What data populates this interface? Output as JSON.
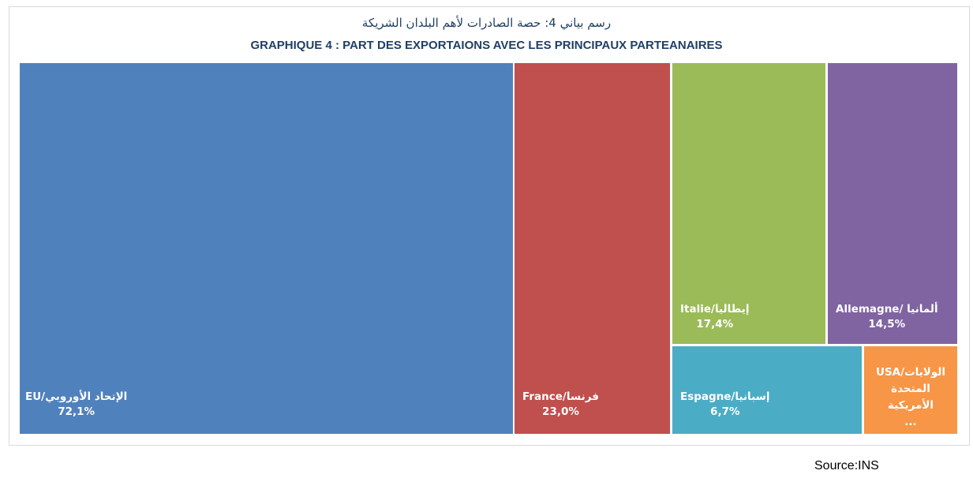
{
  "chart_data": {
    "type": "treemap",
    "title_ar": "رسم بياني 4: حصة الصادرات لأهم البلدان  الشريكة",
    "title_fr": "GRAPHIQUE 4 : PART DES EXPORTAIONS AVEC LES PRINCIPAUX PARTEANAIRES",
    "items": [
      {
        "label": "EU/الإتحاد الأوروبي",
        "value": 72.1,
        "value_label": "72,1%",
        "color": "#4f81bd"
      },
      {
        "label": "France/فرنسا",
        "value": 23.0,
        "value_label": "23,0%",
        "color": "#c0504d"
      },
      {
        "label": "Italie/إيطاليا",
        "value": 17.4,
        "value_label": "17,4%",
        "color": "#9bbb59"
      },
      {
        "label": "Allemagne/ ألمانيا",
        "value": 14.5,
        "value_label": "14,5%",
        "color": "#8064a2"
      },
      {
        "label": "Espagne/إسبانيا",
        "value": 6.7,
        "value_label": "6,7%",
        "color": "#4bacc6"
      },
      {
        "label": "USA/الولايات المتحدة الأمريكية",
        "value": null,
        "value_label": "...",
        "color": "#f79646"
      }
    ]
  },
  "source": "Source:INS"
}
